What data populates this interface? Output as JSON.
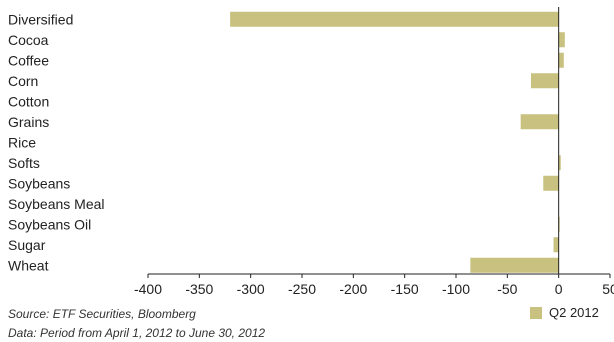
{
  "chart_data": {
    "type": "bar",
    "orientation": "horizontal",
    "title": "",
    "xlabel": "",
    "ylabel": "",
    "categories": [
      "Diversified",
      "Cocoa",
      "Coffee",
      "Corn",
      "Cotton",
      "Grains",
      "Rice",
      "Softs",
      "Soybeans",
      "Soybeans Meal",
      "Soybeans Oil",
      "Sugar",
      "Wheat"
    ],
    "series": [
      {
        "name": "Q2 2012",
        "color": "#c8c17f",
        "values": [
          -320,
          6,
          5,
          -27,
          0,
          -37,
          0,
          2,
          -15,
          0,
          1,
          -5,
          -86
        ]
      }
    ],
    "xlim": [
      -400,
      50
    ],
    "xticks": [
      "-400",
      "-350",
      "-300",
      "-250",
      "-200",
      "-150",
      "-100",
      "-50",
      "0",
      "50"
    ],
    "grid": false,
    "legend_position": "bottom-right"
  },
  "notes": {
    "source": "Source: ETF Securities, Bloomberg",
    "data": "Data: Period from April 1, 2012 to June 30, 2012"
  }
}
